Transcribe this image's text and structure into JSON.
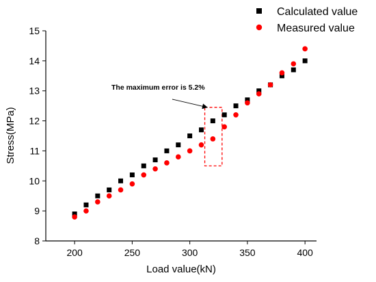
{
  "chart_data": {
    "type": "scatter",
    "title": "",
    "xlabel": "Load value(kN)",
    "ylabel": "Stress(MPa)",
    "xlim": [
      175,
      410
    ],
    "ylim": [
      8,
      15
    ],
    "xticks": [
      200,
      250,
      300,
      350,
      400
    ],
    "yticks": [
      8,
      9,
      10,
      11,
      12,
      13,
      14,
      15
    ],
    "grid": false,
    "legend_position": "top-right",
    "series": [
      {
        "name": "Calculated value",
        "marker": "square",
        "color": "#000000",
        "x": [
          200,
          210,
          220,
          230,
          240,
          250,
          260,
          270,
          280,
          290,
          300,
          310,
          320,
          330,
          340,
          350,
          360,
          370,
          380,
          390,
          400
        ],
        "y": [
          8.9,
          9.2,
          9.5,
          9.7,
          10.0,
          10.2,
          10.5,
          10.7,
          11.0,
          11.2,
          11.5,
          11.7,
          12.0,
          12.2,
          12.5,
          12.7,
          13.0,
          13.2,
          13.5,
          13.7,
          14.0
        ]
      },
      {
        "name": "Measured value",
        "marker": "circle",
        "color": "#ff0000",
        "x": [
          200,
          210,
          220,
          230,
          240,
          250,
          260,
          270,
          280,
          290,
          300,
          310,
          320,
          330,
          340,
          350,
          360,
          370,
          380,
          390,
          400
        ],
        "y": [
          8.8,
          9.0,
          9.3,
          9.5,
          9.7,
          9.9,
          10.2,
          10.4,
          10.6,
          10.8,
          11.0,
          11.2,
          11.4,
          11.8,
          12.2,
          12.6,
          12.9,
          13.2,
          13.6,
          13.9,
          14.4
        ]
      }
    ],
    "annotation": {
      "text": "The maximum error is 5.2%",
      "box_x": [
        313,
        328
      ],
      "box_y": [
        10.5,
        12.45
      ],
      "arrow_to": [
        315,
        12.45
      ],
      "box_color": "#ff0000"
    }
  }
}
